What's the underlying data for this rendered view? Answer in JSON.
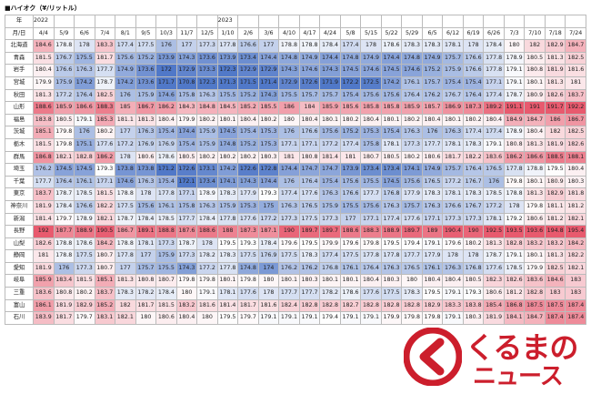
{
  "title": "■ハイオク（¥/リットル）",
  "table": {
    "corner_top": "年",
    "corner_bottom": "月/日",
    "year_row": [
      "2022",
      null,
      null,
      null,
      null,
      null,
      null,
      null,
      null,
      "2023",
      null,
      null,
      null,
      null,
      null,
      null,
      null,
      null,
      null,
      null,
      null,
      null,
      null,
      null,
      null,
      null,
      null
    ],
    "dates": [
      "4/4",
      "5/9",
      "6/6",
      "7/4",
      "8/1",
      "9/5",
      "10/3",
      "11/7",
      "12/5",
      "1/10",
      "2/6",
      "3/6",
      "4/10",
      "4/17",
      "4/24",
      "5/8",
      "5/15",
      "5/22",
      "5/29",
      "6/5",
      "6/12",
      "6/19",
      "6/26",
      "7/3",
      "7/10",
      "7/18",
      "7/24"
    ],
    "rows": [
      {
        "name": "北海道",
        "values": [
          184.6,
          178.8,
          178.0,
          183.3,
          177.4,
          177.5,
          176.0,
          177.0,
          177.3,
          177.8,
          176.6,
          177.0,
          178.8,
          178.8,
          178.4,
          177.4,
          178.0,
          178.6,
          178.3,
          178.3,
          178.1,
          178.0,
          178.4,
          180.0,
          182.0,
          182.9,
          184.7
        ]
      },
      {
        "name": "青森",
        "values": [
          181.5,
          176.7,
          175.5,
          181.7,
          175.6,
          175.2,
          173.9,
          174.3,
          173.6,
          173.9,
          173.4,
          174.4,
          174.8,
          174.9,
          174.4,
          174.8,
          174.9,
          174.4,
          174.8,
          174.9,
          175.7,
          176.6,
          177.8,
          178.9,
          180.5,
          181.3,
          182.5
        ]
      },
      {
        "name": "岩手",
        "values": [
          180.4,
          176.6,
          176.3,
          177.7,
          174.9,
          173.6,
          172.0,
          172.9,
          173.3,
          172.3,
          172.9,
          172.9,
          174.3,
          174.6,
          174.3,
          174.5,
          174.6,
          174.5,
          174.6,
          175.2,
          175.9,
          176.6,
          177.8,
          179.1,
          180.8,
          181.9,
          181.6
        ]
      },
      {
        "name": "宮城",
        "values": [
          179.9,
          175.9,
          174.2,
          178.7,
          174.2,
          173.6,
          171.7,
          170.8,
          172.3,
          171.3,
          171.5,
          171.4,
          172.9,
          172.6,
          171.9,
          172.2,
          172.5,
          174.2,
          176.1,
          175.7,
          175.4,
          175.4,
          177.1,
          179.1,
          180.1,
          181.3,
          181.0
        ]
      },
      {
        "name": "秋田",
        "values": [
          181.3,
          177.2,
          176.4,
          182.5,
          176.0,
          175.9,
          174.6,
          175.8,
          176.3,
          175.5,
          175.2,
          174.3,
          175.5,
          175.7,
          175.7,
          175.4,
          175.6,
          175.6,
          176.4,
          176.2,
          176.7,
          176.4,
          177.4,
          178.7,
          180.9,
          182.6,
          183.7
        ]
      },
      {
        "name": "山形",
        "values": [
          188.6,
          185.9,
          186.6,
          188.3,
          185.0,
          186.7,
          186.2,
          184.3,
          184.8,
          184.5,
          185.2,
          185.5,
          186.0,
          184.0,
          185.9,
          185.6,
          185.8,
          185.8,
          185.9,
          185.7,
          186.9,
          187.3,
          189.2,
          191.1,
          191.0,
          191.7,
          192.2
        ]
      },
      {
        "name": "福島",
        "values": [
          183.8,
          180.5,
          179.1,
          185.3,
          181.1,
          181.3,
          180.4,
          179.9,
          180.2,
          180.1,
          180.4,
          180.2,
          180.0,
          180.4,
          180.1,
          180.2,
          180.4,
          180.1,
          180.2,
          180.4,
          180.1,
          180.2,
          180.4,
          184.9,
          184.7,
          186.0,
          186.7
        ]
      },
      {
        "name": "茨城",
        "values": [
          185.1,
          179.8,
          176.0,
          180.2,
          177.0,
          176.3,
          175.4,
          174.4,
          175.9,
          174.5,
          175.4,
          175.3,
          176.0,
          176.6,
          175.6,
          175.2,
          175.3,
          175.4,
          176.3,
          176.0,
          176.3,
          177.4,
          177.4,
          178.9,
          180.4,
          182.0,
          182.5
        ]
      },
      {
        "name": "栃木",
        "values": [
          181.5,
          179.8,
          175.1,
          177.6,
          177.2,
          176.9,
          176.9,
          175.4,
          175.9,
          174.8,
          175.2,
          175.3,
          177.1,
          177.1,
          177.2,
          177.4,
          175.8,
          178.1,
          177.3,
          177.7,
          178.1,
          178.3,
          179.1,
          180.8,
          181.3,
          181.9,
          182.6
        ]
      },
      {
        "name": "群馬",
        "values": [
          186.8,
          182.1,
          182.8,
          186.2,
          178.0,
          180.6,
          178.6,
          180.5,
          180.2,
          180.2,
          180.2,
          180.3,
          181.0,
          180.8,
          181.4,
          181.0,
          180.7,
          180.5,
          180.2,
          180.6,
          181.7,
          182.2,
          183.6,
          186.2,
          186.6,
          188.5,
          188.1
        ]
      },
      {
        "name": "埼玉",
        "values": [
          176.2,
          174.5,
          174.5,
          179.3,
          173.8,
          173.8,
          171.2,
          172.6,
          173.1,
          174.2,
          172.6,
          172.8,
          174.4,
          174.7,
          174.7,
          173.9,
          173.4,
          173.4,
          174.1,
          174.9,
          175.7,
          176.4,
          176.5,
          177.8,
          178.8,
          179.5,
          180.4
        ]
      },
      {
        "name": "千葉",
        "values": [
          177.7,
          176.4,
          176.1,
          177.1,
          174.6,
          176.3,
          175.4,
          172.1,
          173.4,
          174.1,
          174.3,
          174.4,
          176.0,
          176.4,
          175.4,
          175.6,
          175.5,
          174.5,
          175.6,
          176.5,
          177.2,
          176.7,
          176.0,
          179.8,
          180.1,
          180.9,
          180.3
        ]
      },
      {
        "name": "東京",
        "values": [
          183.7,
          178.7,
          178.5,
          181.5,
          178.8,
          178.0,
          177.8,
          177.1,
          178.9,
          178.3,
          177.9,
          179.3,
          177.4,
          177.6,
          176.3,
          176.6,
          177.7,
          176.8,
          177.9,
          178.3,
          178.1,
          178.3,
          178.5,
          178.8,
          181.3,
          182.9,
          181.8
        ]
      },
      {
        "name": "神奈川",
        "values": [
          181.9,
          178.4,
          176.6,
          182.2,
          177.5,
          175.6,
          176.1,
          175.8,
          176.3,
          175.9,
          175.3,
          175.0,
          176.3,
          176.5,
          175.9,
          175.5,
          175.6,
          176.3,
          175.7,
          176.3,
          176.6,
          176.7,
          177.2,
          178.0,
          179.8,
          181.1,
          181.2
        ]
      },
      {
        "name": "新潟",
        "values": [
          181.4,
          179.7,
          178.9,
          182.1,
          178.7,
          178.4,
          178.5,
          177.7,
          178.4,
          177.8,
          177.6,
          177.2,
          177.3,
          177.5,
          177.3,
          177.0,
          177.1,
          177.4,
          177.6,
          177.1,
          177.3,
          177.3,
          178.1,
          179.2,
          180.6,
          181.2,
          182.1
        ]
      },
      {
        "name": "長野",
        "values": [
          192.0,
          187.7,
          188.9,
          190.5,
          186.7,
          189.1,
          188.8,
          187.6,
          188.6,
          188.0,
          187.3,
          187.1,
          190.0,
          189.7,
          189.7,
          188.6,
          188.3,
          188.9,
          189.7,
          189.0,
          190.4,
          190.0,
          192.5,
          193.5,
          193.6,
          194.8,
          195.4
        ]
      },
      {
        "name": "山梨",
        "values": [
          182.6,
          178.8,
          178.6,
          184.2,
          178.8,
          178.1,
          177.3,
          178.7,
          178.0,
          179.5,
          179.3,
          178.4,
          179.6,
          179.5,
          179.9,
          179.6,
          179.8,
          179.5,
          179.4,
          179.1,
          179.6,
          180.2,
          181.3,
          182.8,
          183.2,
          183.2,
          184.2
        ]
      },
      {
        "name": "静岡",
        "values": [
          181.0,
          178.8,
          177.5,
          180.7,
          177.8,
          177.0,
          175.9,
          177.3,
          178.2,
          178.3,
          177.5,
          176.9,
          177.5,
          178.3,
          177.4,
          177.5,
          177.8,
          177.8,
          177.7,
          177.9,
          178.0,
          178.0,
          178.7,
          179.1,
          180.1,
          181.3,
          182.2
        ]
      },
      {
        "name": "愛知",
        "values": [
          181.9,
          176.0,
          177.3,
          180.7,
          177.0,
          175.7,
          175.5,
          174.3,
          177.2,
          177.8,
          174.8,
          174.0,
          176.2,
          176.2,
          176.8,
          176.1,
          176.4,
          176.3,
          176.5,
          176.1,
          176.3,
          176.8,
          177.6,
          178.5,
          179.9,
          182.5,
          182.1
        ]
      },
      {
        "name": "岐阜",
        "values": [
          185.9,
          183.4,
          181.5,
          185.1,
          181.3,
          180.8,
          180.7,
          179.8,
          179.8,
          180.1,
          179.8,
          180.0,
          180.1,
          180.3,
          180.1,
          180.1,
          180.4,
          180.3,
          180.0,
          180.4,
          180.4,
          180.5,
          182.3,
          182.6,
          183.6,
          184.6,
          183.0
        ]
      },
      {
        "name": "三重",
        "values": [
          183.6,
          180.8,
          180.2,
          183.7,
          178.3,
          178.2,
          178.4,
          180.0,
          179.1,
          178.1,
          177.6,
          178.0,
          177.7,
          177.7,
          178.2,
          178.6,
          177.6,
          177.5,
          178.3,
          179.5,
          179.1,
          179.3,
          180.6,
          181.2,
          182.8,
          183.0,
          183.0
        ]
      },
      {
        "name": "富山",
        "values": [
          186.1,
          181.9,
          182.9,
          185.2,
          182.0,
          181.7,
          181.5,
          183.2,
          181.6,
          181.4,
          181.7,
          181.6,
          182.4,
          182.8,
          182.8,
          182.7,
          182.8,
          182.8,
          182.8,
          182.9,
          183.3,
          183.8,
          185.4,
          186.8,
          187.5,
          187.5,
          187.4
        ]
      },
      {
        "name": "石川",
        "values": [
          183.9,
          181.7,
          179.7,
          183.1,
          182.1,
          180.0,
          180.6,
          180.4,
          180.0,
          179.5,
          179.7,
          179.1,
          179.1,
          179.1,
          179.4,
          179.1,
          179.1,
          179.9,
          179.8,
          179.8,
          179.1,
          180.3,
          181.9,
          184.1,
          184.7,
          187.4,
          187.4
        ]
      }
    ]
  },
  "logo": {
    "line1": "くるまの",
    "line2": "ニュース"
  }
}
